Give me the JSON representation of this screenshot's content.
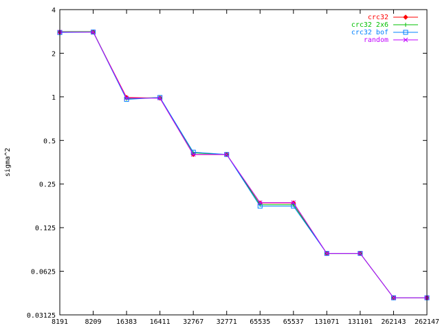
{
  "chart_data": {
    "type": "line",
    "title": "",
    "xlabel": "",
    "ylabel": "sigma^2",
    "y_scale": "log2",
    "ylim": [
      0.03125,
      4
    ],
    "yticks": [
      {
        "value": 0.03125,
        "label": "0.03125"
      },
      {
        "value": 0.0625,
        "label": "0.0625"
      },
      {
        "value": 0.125,
        "label": "0.125"
      },
      {
        "value": 0.25,
        "label": "0.25"
      },
      {
        "value": 0.5,
        "label": "0.5"
      },
      {
        "value": 1,
        "label": "1"
      },
      {
        "value": 2,
        "label": "2"
      },
      {
        "value": 4,
        "label": "4"
      }
    ],
    "categories": [
      "8191",
      "8209",
      "16383",
      "16411",
      "32767",
      "32771",
      "65535",
      "65537",
      "131071",
      "131101",
      "262143",
      "262147"
    ],
    "grid": false,
    "legend_position": "top-right",
    "series": [
      {
        "name": "crc32",
        "color": "#ff0000",
        "marker": "diamond",
        "values": [
          2.8,
          2.8,
          0.99,
          0.98,
          0.4,
          0.4,
          0.185,
          0.185,
          0.083,
          0.083,
          0.041,
          0.041
        ]
      },
      {
        "name": "crc32 2x6",
        "color": "#00c000",
        "marker": "plus",
        "values": [
          2.82,
          2.82,
          0.97,
          0.99,
          0.41,
          0.4,
          0.18,
          0.18,
          0.083,
          0.083,
          0.041,
          0.041
        ]
      },
      {
        "name": "crc32 bof",
        "color": "#0080ff",
        "marker": "square",
        "values": [
          2.78,
          2.8,
          0.96,
          0.99,
          0.415,
          0.4,
          0.176,
          0.176,
          0.083,
          0.083,
          0.041,
          0.041
        ]
      },
      {
        "name": "random",
        "color": "#c000ff",
        "marker": "cross",
        "values": [
          2.8,
          2.8,
          0.98,
          0.98,
          0.4,
          0.4,
          0.186,
          0.186,
          0.083,
          0.083,
          0.041,
          0.041
        ]
      }
    ]
  }
}
